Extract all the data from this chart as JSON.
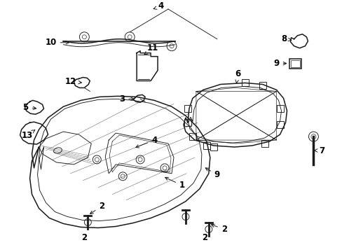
{
  "bg_color": "#ffffff",
  "line_color": "#1a1a1a",
  "text_color": "#000000",
  "fig_width": 4.89,
  "fig_height": 3.6,
  "dpi": 100,
  "lw_main": 1.1,
  "lw_thin": 0.65,
  "fontsize": 8.5
}
